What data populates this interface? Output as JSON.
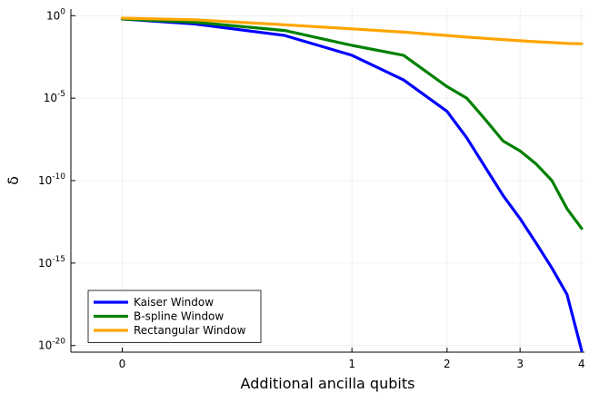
{
  "chart_data": {
    "type": "line",
    "title": "",
    "xlabel": "Additional ancilla qubits",
    "ylabel": "δ",
    "x_scale": "sqrt",
    "y_scale": "log10",
    "grid": true,
    "legend_position": "bottom-left",
    "xlim": [
      -0.05,
      4.05
    ],
    "ylim_exponent": [
      -20.4,
      0.4
    ],
    "x_ticks": [
      0,
      1,
      2,
      3,
      4
    ],
    "y_tick_exponents": [
      0,
      -5,
      -10,
      -15,
      -20
    ],
    "y_tick_base": "10",
    "series": [
      {
        "name": "Kaiser Window",
        "color": "#0000ff",
        "x": [
          0,
          0.1,
          0.5,
          1,
          1.5,
          2,
          2.25,
          2.5,
          2.75,
          3,
          3.25,
          3.5,
          3.75,
          4
        ],
        "y_exponent": [
          -0.2,
          -0.5,
          -1.2,
          -2.4,
          -3.9,
          -5.8,
          -7.4,
          -9.2,
          -10.9,
          -12.3,
          -13.8,
          -15.3,
          -16.9,
          -20.3
        ]
      },
      {
        "name": "B-spline Window",
        "color": "#008000",
        "x": [
          0,
          0.1,
          0.5,
          1,
          1.5,
          2,
          2.25,
          2.5,
          2.75,
          3,
          3.25,
          3.5,
          3.75,
          4
        ],
        "y_exponent": [
          -0.2,
          -0.4,
          -0.9,
          -1.8,
          -2.4,
          -4.3,
          -5.0,
          -6.3,
          -7.6,
          -8.2,
          -9.0,
          -10.0,
          -11.7,
          -12.9
        ]
      },
      {
        "name": "Rectangular Window",
        "color": "#ffa500",
        "x": [
          0,
          0.1,
          0.5,
          1,
          1.5,
          2,
          2.25,
          2.5,
          2.75,
          3,
          3.25,
          3.5,
          3.75,
          4
        ],
        "y_exponent": [
          -0.15,
          -0.25,
          -0.55,
          -0.8,
          -1.0,
          -1.2,
          -1.3,
          -1.38,
          -1.45,
          -1.52,
          -1.58,
          -1.63,
          -1.68,
          -1.7
        ]
      }
    ]
  }
}
